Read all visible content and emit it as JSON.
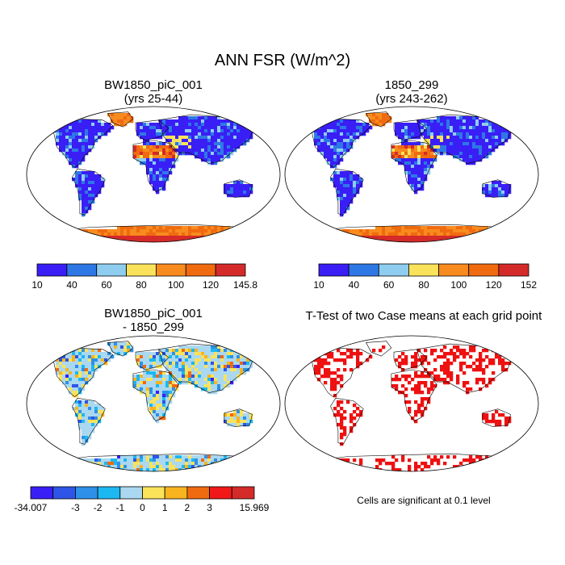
{
  "page": {
    "title": "ANN FSR (W/m^2)",
    "significance_note": "Cells are significant at 0.1 level"
  },
  "panels": [
    {
      "title_line1": "BW1850_piC_001",
      "title_line2": "(yrs 25-44)"
    },
    {
      "title_line1": "1850_299",
      "title_line2": "(yrs 243-262)"
    },
    {
      "title_line1": "BW1850_piC_001",
      "title_line2": "- 1850_299"
    },
    {
      "title_line1": "T-Test of two Case means at each grid point",
      "title_line2": ""
    }
  ],
  "chart_data": [
    {
      "type": "heatmap",
      "title": "BW1850_piC_001 (yrs 25-44)",
      "colorbar": {
        "labels": [
          "10",
          "40",
          "60",
          "80",
          "100",
          "120",
          "145.8"
        ],
        "colors": [
          "#3a1ef6",
          "#2e78e6",
          "#8ecdf0",
          "#fae35a",
          "#f88b1e",
          "#f06a10",
          "#d42a2a"
        ],
        "bins": [
          "10-40",
          "40-60",
          "60-80",
          "80-100",
          "100-120",
          "120-145.8"
        ]
      }
    },
    {
      "type": "heatmap",
      "title": "1850_299 (yrs 243-262)",
      "colorbar": {
        "labels": [
          "10",
          "40",
          "60",
          "80",
          "100",
          "120",
          "152"
        ],
        "colors": [
          "#3a1ef6",
          "#2e78e6",
          "#8ecdf0",
          "#fae35a",
          "#f88b1e",
          "#f06a10",
          "#d42a2a"
        ],
        "bins": [
          "10-40",
          "40-60",
          "60-80",
          "80-100",
          "100-120",
          "120-152"
        ]
      }
    },
    {
      "type": "heatmap",
      "title": "BW1850_piC_001 - 1850_299",
      "colorbar": {
        "labels": [
          "-34.007",
          "-3",
          "-2",
          "-1",
          "0",
          "1",
          "2",
          "3",
          "15.969"
        ],
        "colors": [
          "#3a1ef6",
          "#2e55e8",
          "#2e90e8",
          "#1cb8f0",
          "#aad8f0",
          "#fae35a",
          "#f8b41e",
          "#f06a10",
          "#f01818",
          "#d42a2a"
        ]
      }
    },
    {
      "type": "heatmap",
      "title": "T-Test of two Case means at each grid point",
      "significant_color": "#ee1111",
      "significance_level": 0.1
    }
  ]
}
